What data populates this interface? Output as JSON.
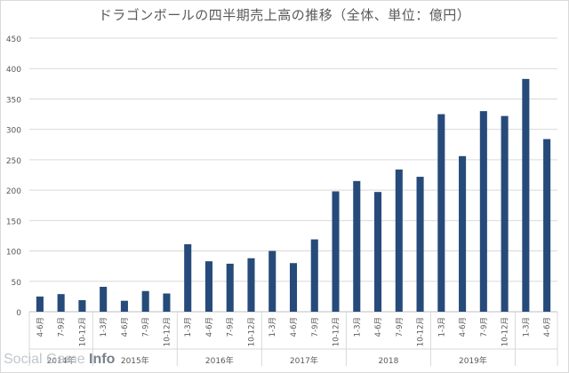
{
  "chart_data": {
    "type": "bar",
    "title": "ドラゴンボールの四半期売上高の推移（全体、単位：億円）",
    "xlabel": "",
    "ylabel": "",
    "ylim": [
      0,
      450
    ],
    "yticks": [
      0,
      50,
      100,
      150,
      200,
      250,
      300,
      350,
      400,
      450
    ],
    "grid": true,
    "legend": "none",
    "bar_color": "#264b7a",
    "categories": [
      "4-6月",
      "7-9月",
      "10-12月",
      "1-3月",
      "4-6月",
      "7-9月",
      "10-12月",
      "1-3月",
      "4-6月",
      "7-9月",
      "10-12月",
      "1-3月",
      "4-6月",
      "7-9月",
      "10-12月",
      "1-3月",
      "4-6月",
      "7-9月",
      "10-12月",
      "1-3月",
      "4-6月",
      "7-9月",
      "10-12月",
      "1-3月",
      "4-6月"
    ],
    "values": [
      25,
      29,
      19,
      41,
      18,
      34,
      30,
      111,
      83,
      79,
      88,
      100,
      80,
      119,
      198,
      215,
      197,
      234,
      222,
      325,
      256,
      330,
      322,
      383,
      284
    ],
    "year_groups": [
      {
        "label": "2014年",
        "start": 0,
        "end": 2
      },
      {
        "label": "2015年",
        "start": 3,
        "end": 6
      },
      {
        "label": "2016年",
        "start": 7,
        "end": 10
      },
      {
        "label": "2017年",
        "start": 11,
        "end": 14
      },
      {
        "label": "2018",
        "start": 15,
        "end": 18
      },
      {
        "label": "2019年",
        "start": 19,
        "end": 22
      },
      {
        "label": "",
        "start": 23,
        "end": 24
      }
    ]
  },
  "watermark": {
    "light": "Social Game ",
    "bold": "Info"
  }
}
